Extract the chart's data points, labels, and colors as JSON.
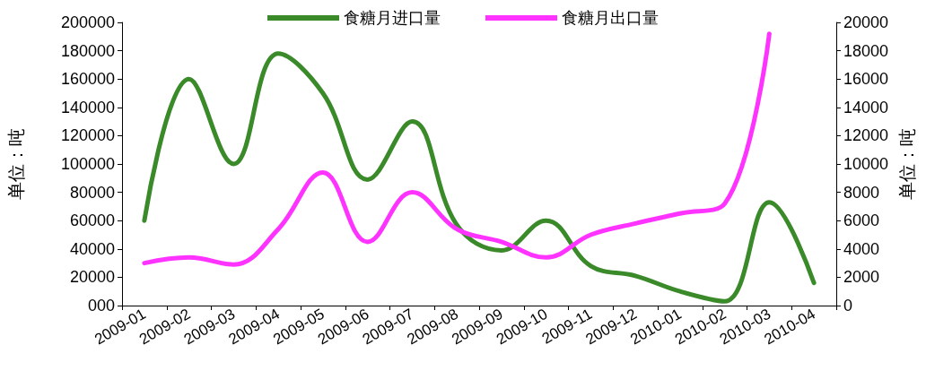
{
  "chart_data": {
    "type": "line",
    "categories": [
      "2009-01",
      "2009-02",
      "2009-03",
      "2009-04",
      "2009-05",
      "2009-06",
      "2009-07",
      "2009-08",
      "2009-09",
      "2009-10",
      "2009-11",
      "2009-12",
      "2010-01",
      "2010-02",
      "2010-03",
      "2010-04"
    ],
    "series": [
      {
        "name": "食糖月进口量",
        "color": "#3a8a2a",
        "values": [
          60000,
          160000,
          100000,
          178000,
          150000,
          89000,
          130000,
          57000,
          39000,
          60000,
          28000,
          21000,
          10000,
          3000,
          73000,
          16000
        ]
      },
      {
        "name": "食糖月出口量",
        "color": "#ff33ff",
        "axis": "y2",
        "values": [
          3000,
          3400,
          2900,
          5400,
          9400,
          4500,
          8000,
          5400,
          4500,
          3400,
          5000,
          5800,
          6500,
          7200,
          19200,
          null
        ]
      }
    ],
    "ylabel": "单位：吨",
    "y2label": "单位：吨",
    "ylim": [
      0,
      200000
    ],
    "yticks": [
      {
        "value": 0,
        "label": "000"
      },
      20000,
      40000,
      60000,
      80000,
      100000,
      120000,
      140000,
      160000,
      180000,
      200000
    ],
    "y2lim": [
      0,
      20000
    ],
    "y2ticks": [
      0,
      2000,
      4000,
      6000,
      8000,
      10000,
      12000,
      14000,
      16000,
      18000,
      20000
    ],
    "grid": false,
    "legend": "top",
    "marker": "none",
    "line_style": "solid"
  }
}
